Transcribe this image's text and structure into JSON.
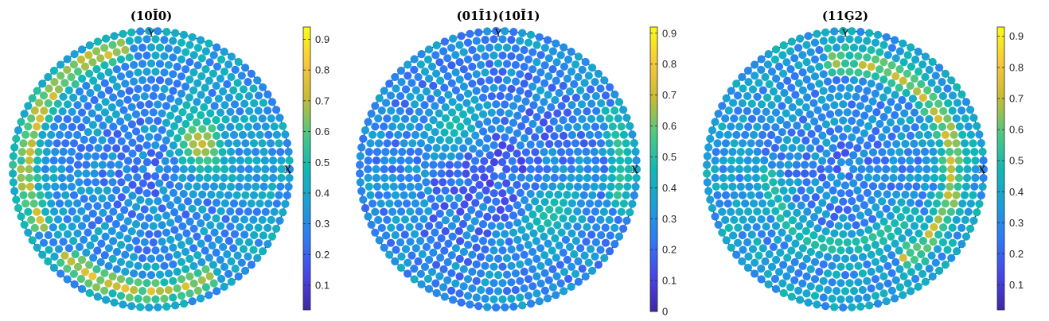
{
  "chart_data": [
    {
      "type": "scatter",
      "subtype": "pole-figure",
      "title": "(10Ī0)",
      "xlabel": "X",
      "ylabel": "Y",
      "colorbar": {
        "ticks": [
          "0.1",
          "0.2",
          "0.3",
          "0.4",
          "0.5",
          "0.6",
          "0.7",
          "0.8",
          "0.9"
        ],
        "range": [
          0.02,
          0.94
        ]
      },
      "features": [
        {
          "kind": "hotspot",
          "azimuth_deg": 28,
          "polar": 0.4,
          "value": 0.72
        },
        {
          "kind": "ring",
          "polar": 0.9,
          "azimuth_range_deg": [
            100,
            210
          ],
          "value": 0.78
        },
        {
          "kind": "ring",
          "polar": 0.88,
          "azimuth_range_deg": [
            225,
            300
          ],
          "value": 0.8
        }
      ],
      "background_value": 0.25
    },
    {
      "type": "scatter",
      "subtype": "pole-figure",
      "title": "(01Ī1)(10Ī1)",
      "xlabel": "X",
      "ylabel": "Y",
      "colorbar": {
        "ticks": [
          "0",
          "0.1",
          "0.2",
          "0.3",
          "0.4",
          "0.5",
          "0.6",
          "0.7",
          "0.8",
          "0.9"
        ],
        "range": [
          0.0,
          0.92
        ]
      },
      "features": [
        {
          "kind": "hotspot",
          "azimuth_deg": 135,
          "polar": 0.45,
          "value": 0.48
        },
        {
          "kind": "hotspot",
          "azimuth_deg": -40,
          "polar": 0.5,
          "value": 0.5
        },
        {
          "kind": "ring",
          "polar": 0.9,
          "azimuth_range_deg": [
            -20,
            30
          ],
          "value": 0.55
        }
      ],
      "background_value": 0.18
    },
    {
      "type": "scatter",
      "subtype": "pole-figure",
      "title": "(11Ģ2)",
      "xlabel": "X",
      "ylabel": "Y",
      "colorbar": {
        "ticks": [
          "0.1",
          "0.2",
          "0.3",
          "0.4",
          "0.5",
          "0.6",
          "0.7",
          "0.8",
          "0.9"
        ],
        "range": [
          0.02,
          0.93
        ]
      },
      "features": [
        {
          "kind": "ring",
          "polar": 0.78,
          "azimuth_range_deg": [
            -60,
            100
          ],
          "value": 0.75
        },
        {
          "kind": "ring",
          "polar": 0.55,
          "azimuth_range_deg": [
            180,
            330
          ],
          "value": 0.55
        }
      ],
      "background_value": 0.25
    }
  ]
}
